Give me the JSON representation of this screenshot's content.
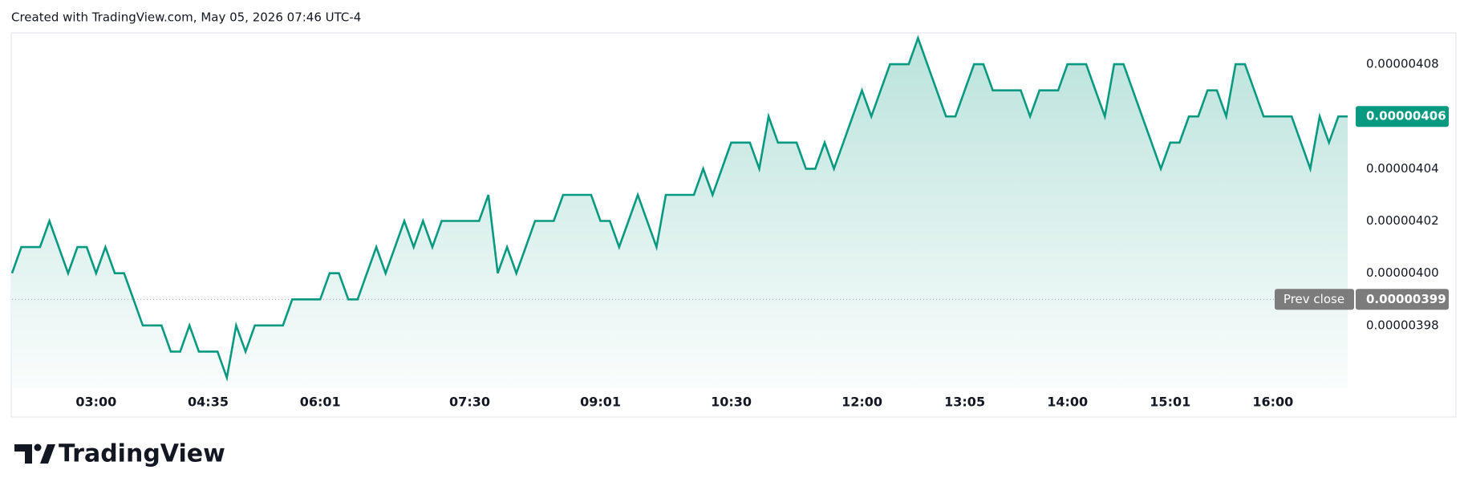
{
  "header": "Created with TradingView.com, May 05, 2026 07:46 UTC-4",
  "brand": "TradingView",
  "chart_data": {
    "type": "line",
    "color": "#089981",
    "categories": [
      null,
      null,
      null,
      null,
      null,
      null,
      null,
      null,
      null,
      "03:00",
      null,
      null,
      null,
      null,
      null,
      null,
      null,
      null,
      null,
      null,
      null,
      "04:35",
      null,
      null,
      null,
      null,
      null,
      null,
      null,
      null,
      null,
      null,
      null,
      "06:01",
      null,
      null,
      null,
      null,
      null,
      null,
      null,
      null,
      null,
      null,
      null,
      null,
      null,
      null,
      null,
      "07:30",
      null,
      null,
      null,
      null,
      null,
      null,
      null,
      null,
      null,
      null,
      null,
      null,
      null,
      "09:01",
      null,
      null,
      null,
      null,
      null,
      null,
      null,
      null,
      null,
      null,
      null,
      null,
      null,
      "10:30",
      null,
      null,
      null,
      null,
      null,
      null,
      null,
      null,
      null,
      null,
      null,
      null,
      null,
      "12:00",
      null,
      null,
      null,
      null,
      null,
      null,
      null,
      null,
      null,
      null,
      "13:05",
      null,
      null,
      null,
      null,
      null,
      null,
      null,
      null,
      null,
      null,
      "14:00",
      null,
      null,
      null,
      null,
      null,
      null,
      null,
      null,
      null,
      null,
      "15:01",
      null,
      null,
      null,
      null,
      null,
      null,
      null,
      null,
      null,
      null,
      "16:00",
      null,
      null,
      null,
      null,
      null,
      null,
      null,
      null
    ],
    "values": [
      4e-06,
      4.01e-06,
      4.01e-06,
      4.01e-06,
      4.02e-06,
      4.01e-06,
      4e-06,
      4.01e-06,
      4.01e-06,
      4e-06,
      4.01e-06,
      4e-06,
      4e-06,
      3.99e-06,
      3.98e-06,
      3.98e-06,
      3.98e-06,
      3.97e-06,
      3.97e-06,
      3.98e-06,
      3.97e-06,
      3.97e-06,
      3.97e-06,
      3.96e-06,
      3.98e-06,
      3.97e-06,
      3.98e-06,
      3.98e-06,
      3.98e-06,
      3.98e-06,
      3.99e-06,
      3.99e-06,
      3.99e-06,
      3.99e-06,
      4e-06,
      4e-06,
      3.99e-06,
      3.99e-06,
      4e-06,
      4.01e-06,
      4e-06,
      4.01e-06,
      4.02e-06,
      4.01e-06,
      4.02e-06,
      4.01e-06,
      4.02e-06,
      4.02e-06,
      4.02e-06,
      4.02e-06,
      4.02e-06,
      4.03e-06,
      4e-06,
      4.01e-06,
      4e-06,
      4.01e-06,
      4.02e-06,
      4.02e-06,
      4.02e-06,
      4.03e-06,
      4.03e-06,
      4.03e-06,
      4.03e-06,
      4.02e-06,
      4.02e-06,
      4.01e-06,
      4.02e-06,
      4.03e-06,
      4.02e-06,
      4.01e-06,
      4.03e-06,
      4.03e-06,
      4.03e-06,
      4.03e-06,
      4.04e-06,
      4.03e-06,
      4.04e-06,
      4.05e-06,
      4.05e-06,
      4.05e-06,
      4.04e-06,
      4.06e-06,
      4.05e-06,
      4.05e-06,
      4.05e-06,
      4.04e-06,
      4.04e-06,
      4.05e-06,
      4.04e-06,
      4.05e-06,
      4.06e-06,
      4.07e-06,
      4.06e-06,
      4.07e-06,
      4.08e-06,
      4.08e-06,
      4.08e-06,
      4.09e-06,
      4.08e-06,
      4.07e-06,
      4.06e-06,
      4.06e-06,
      4.07e-06,
      4.08e-06,
      4.08e-06,
      4.07e-06,
      4.07e-06,
      4.07e-06,
      4.07e-06,
      4.06e-06,
      4.07e-06,
      4.07e-06,
      4.07e-06,
      4.08e-06,
      4.08e-06,
      4.08e-06,
      4.07e-06,
      4.06e-06,
      4.08e-06,
      4.08e-06,
      4.07e-06,
      4.06e-06,
      4.05e-06,
      4.04e-06,
      4.05e-06,
      4.05e-06,
      4.06e-06,
      4.06e-06,
      4.07e-06,
      4.07e-06,
      4.06e-06,
      4.08e-06,
      4.08e-06,
      4.07e-06,
      4.06e-06,
      4.06e-06,
      4.06e-06,
      4.06e-06,
      4.05e-06,
      4.04e-06,
      4.06e-06,
      4.05e-06,
      4.06e-06,
      4.06e-06
    ],
    "ylim": [
      3.956e-06,
      4.092e-06
    ],
    "yticks": [
      4.08e-06,
      4.04e-06,
      4.02e-06,
      {
        "value": 4e-06,
        "label": "0.00000400"
      },
      3.98e-06
    ],
    "last_price": 4.06e-06,
    "prev_close": {
      "label": "Prev close",
      "value": 3.99e-06
    }
  }
}
